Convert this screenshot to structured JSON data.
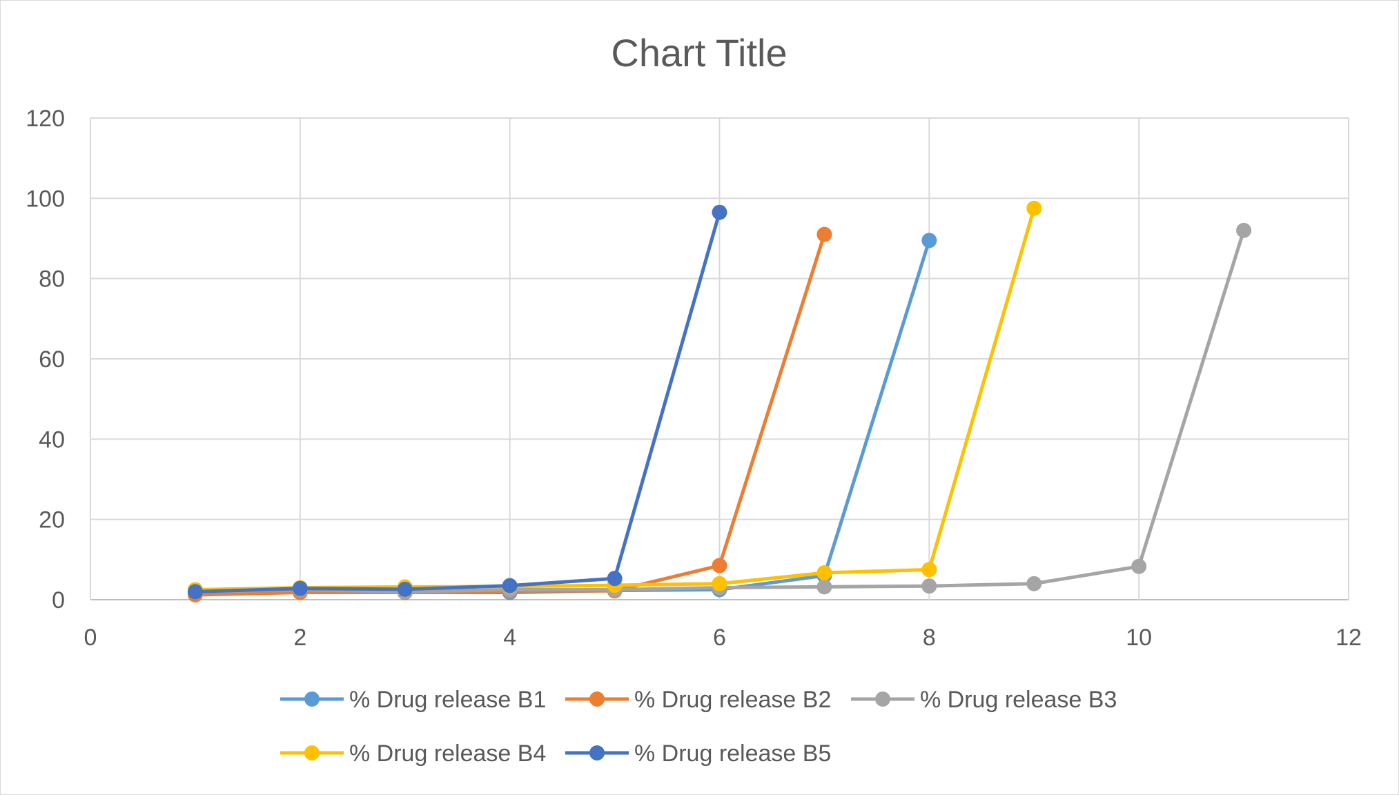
{
  "chart_data": {
    "type": "scatter",
    "title": "Chart Title",
    "xlabel": "",
    "ylabel": "",
    "xlim": [
      0,
      12
    ],
    "ylim": [
      0,
      120
    ],
    "xticks": [
      0,
      2,
      4,
      6,
      8,
      10,
      12
    ],
    "yticks": [
      0,
      20,
      40,
      60,
      80,
      100,
      120
    ],
    "grid": true,
    "legend_position": "bottom",
    "series": [
      {
        "name": "% Drug release B1",
        "color": "#5b9bd5",
        "points": [
          [
            1,
            1.5
          ],
          [
            2,
            2
          ],
          [
            3,
            1.8
          ],
          [
            4,
            1.8
          ],
          [
            5,
            2.3
          ],
          [
            6,
            2.5
          ],
          [
            7,
            6
          ],
          [
            8,
            89.5
          ]
        ]
      },
      {
        "name": "% Drug release B2",
        "color": "#ed7d31",
        "points": [
          [
            1,
            1.2
          ],
          [
            2,
            1.8
          ],
          [
            3,
            1.8
          ],
          [
            4,
            2.2
          ],
          [
            5,
            2.2
          ],
          [
            6,
            8.5
          ],
          [
            7,
            91
          ]
        ]
      },
      {
        "name": "% Drug release B3",
        "color": "#a5a5a5",
        "points": [
          [
            1,
            2
          ],
          [
            2,
            2.5
          ],
          [
            3,
            2
          ],
          [
            4,
            2.5
          ],
          [
            5,
            2.5
          ],
          [
            6,
            3
          ],
          [
            7,
            3.2
          ],
          [
            8,
            3.4
          ],
          [
            9,
            4
          ],
          [
            10,
            8.3
          ],
          [
            11,
            92
          ]
        ]
      },
      {
        "name": "% Drug release B4",
        "color": "#ffc000",
        "points": [
          [
            1,
            2.5
          ],
          [
            2,
            3
          ],
          [
            3,
            3.2
          ],
          [
            4,
            3.3
          ],
          [
            5,
            3.6
          ],
          [
            6,
            4
          ],
          [
            7,
            6.7
          ],
          [
            8,
            7.5
          ],
          [
            9,
            97.5
          ]
        ]
      },
      {
        "name": "% Drug release B5",
        "color": "#4472c4",
        "points": [
          [
            1,
            2
          ],
          [
            2,
            2.8
          ],
          [
            3,
            2.6
          ],
          [
            4,
            3.5
          ],
          [
            5,
            5.3
          ],
          [
            6,
            96.5
          ]
        ]
      }
    ]
  }
}
